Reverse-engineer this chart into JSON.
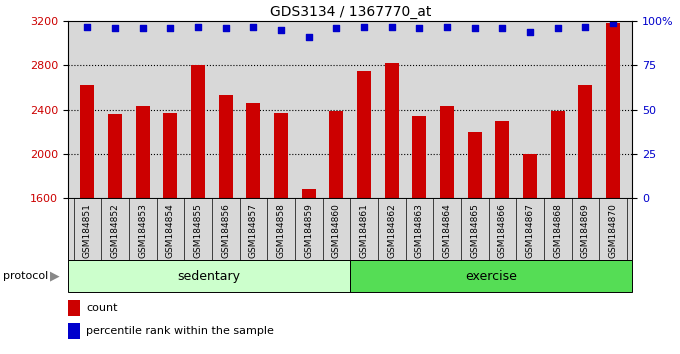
{
  "title": "GDS3134 / 1367770_at",
  "samples": [
    "GSM184851",
    "GSM184852",
    "GSM184853",
    "GSM184854",
    "GSM184855",
    "GSM184856",
    "GSM184857",
    "GSM184858",
    "GSM184859",
    "GSM184860",
    "GSM184861",
    "GSM184862",
    "GSM184863",
    "GSM184864",
    "GSM184865",
    "GSM184866",
    "GSM184867",
    "GSM184868",
    "GSM184869",
    "GSM184870"
  ],
  "bar_values": [
    2620,
    2360,
    2430,
    2370,
    2800,
    2530,
    2460,
    2370,
    1680,
    2390,
    2750,
    2820,
    2340,
    2430,
    2200,
    2300,
    2000,
    2390,
    2620,
    3180
  ],
  "percentile_values": [
    97,
    96,
    96,
    96,
    97,
    96,
    97,
    95,
    91,
    96,
    97,
    97,
    96,
    97,
    96,
    96,
    94,
    96,
    97,
    99
  ],
  "sedentary_count": 10,
  "exercise_count": 10,
  "ylim_left": [
    1600,
    3200
  ],
  "ylim_right": [
    0,
    100
  ],
  "yticks_left": [
    1600,
    2000,
    2400,
    2800,
    3200
  ],
  "yticks_right": [
    0,
    25,
    50,
    75,
    100
  ],
  "bar_color": "#cc0000",
  "dot_color": "#0000cc",
  "sedentary_color": "#ccffcc",
  "exercise_color": "#55dd55",
  "bg_color": "#d8d8d8",
  "grid_color": "#000000",
  "legend_count_color": "#cc0000",
  "legend_pct_color": "#0000cc",
  "title_fontsize": 10,
  "tick_fontsize": 8,
  "xlabel_fontsize": 7,
  "legend_fontsize": 8
}
